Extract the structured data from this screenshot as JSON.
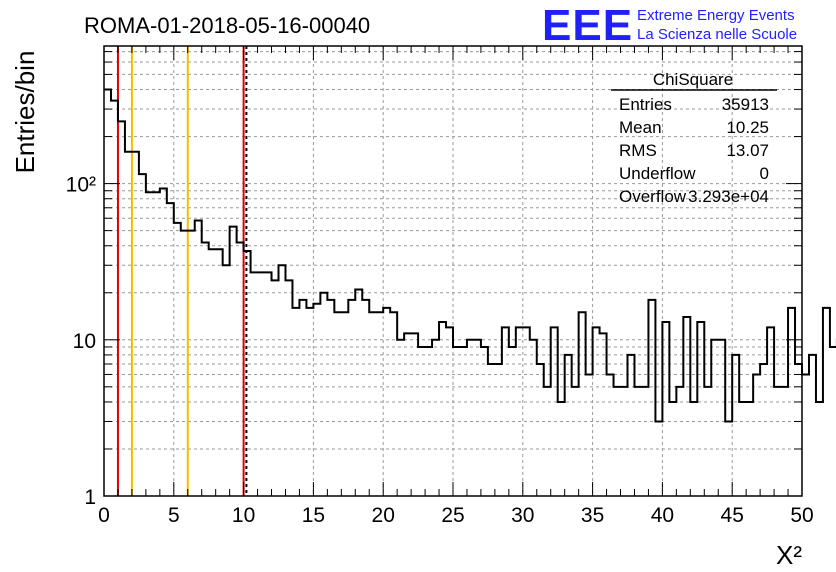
{
  "title": "ROMA-01-2018-05-16-00040",
  "logo": {
    "big": "EEE",
    "line1": "Extreme Energy Events",
    "line2": "La Scienza nelle Scuole",
    "color": "#1f1fff"
  },
  "stats": {
    "name": "ChiSquare",
    "rows": [
      {
        "label": "Entries",
        "value": "35913"
      },
      {
        "label": "Mean",
        "value": "10.25"
      },
      {
        "label": "RMS",
        "value": "13.07"
      },
      {
        "label": "Underflow",
        "value": "0"
      },
      {
        "label": "Overflow",
        "value": "3.293e+04"
      }
    ]
  },
  "chart_data": {
    "type": "histogram",
    "title": "ROMA-01-2018-05-16-00040",
    "xlabel": "X²",
    "ylabel": "Entries/bin",
    "xlim": [
      0,
      50
    ],
    "ylim": [
      1,
      760
    ],
    "yscale": "log",
    "grid": true,
    "bin_width": 0.5,
    "x_ticks": [
      "0",
      "5",
      "10",
      "15",
      "20",
      "25",
      "30",
      "35",
      "40",
      "45",
      "50"
    ],
    "y_ticks": [
      {
        "value": 1,
        "label": "1"
      },
      {
        "value": 10,
        "label": "10"
      },
      {
        "value": 100,
        "label": "10²"
      }
    ],
    "values": [
      400,
      340,
      250,
      160,
      160,
      115,
      88,
      88,
      93,
      75,
      56,
      50,
      50,
      58,
      42,
      38,
      38,
      30,
      53,
      42,
      37,
      27,
      27,
      27,
      24,
      30,
      24,
      16,
      18,
      16,
      17,
      20,
      18,
      15,
      15,
      18,
      21,
      18,
      15,
      15,
      16,
      15,
      10,
      11,
      11,
      9,
      9,
      10,
      13,
      12,
      9,
      9,
      10,
      10,
      9,
      7,
      7,
      12,
      9,
      12,
      12,
      10,
      7,
      5,
      12,
      4,
      8,
      5,
      15,
      6,
      12,
      11,
      6,
      5,
      5,
      8,
      5,
      5,
      18,
      3,
      13,
      4,
      5,
      14,
      4,
      13,
      5,
      10,
      10,
      3,
      8,
      4,
      4,
      6,
      7,
      12,
      5,
      5,
      16,
      7,
      6,
      8,
      4,
      16,
      9,
      10,
      11,
      5,
      5,
      4,
      9,
      14,
      9,
      13,
      5,
      15,
      8,
      5,
      4,
      6,
      12,
      7,
      8,
      4,
      4,
      2,
      4,
      2,
      3,
      4,
      4,
      3,
      7,
      4,
      5,
      5,
      3,
      4,
      4,
      4,
      5,
      3,
      4,
      5,
      3,
      4,
      4,
      4,
      4,
      4,
      3,
      5,
      3,
      4,
      3,
      20,
      4,
      5,
      5,
      3,
      4,
      4,
      5,
      4,
      4,
      3,
      4,
      4,
      4,
      5,
      6,
      7,
      5,
      4,
      4,
      5,
      6,
      4,
      3,
      4,
      3,
      2,
      4,
      4,
      5,
      4,
      3,
      4,
      4,
      3,
      4,
      4,
      3,
      4,
      2,
      4,
      5,
      3,
      6,
      5
    ],
    "vertical_lines": [
      {
        "x": 1,
        "color": "#e00000",
        "style": "solid"
      },
      {
        "x": 2,
        "color": "#f0c000",
        "style": "solid"
      },
      {
        "x": 6,
        "color": "#f0c000",
        "style": "solid"
      },
      {
        "x": 10,
        "color": "#e00000",
        "style": "solid"
      },
      {
        "x": 10.2,
        "color": "#000000",
        "style": "dashed"
      }
    ]
  }
}
